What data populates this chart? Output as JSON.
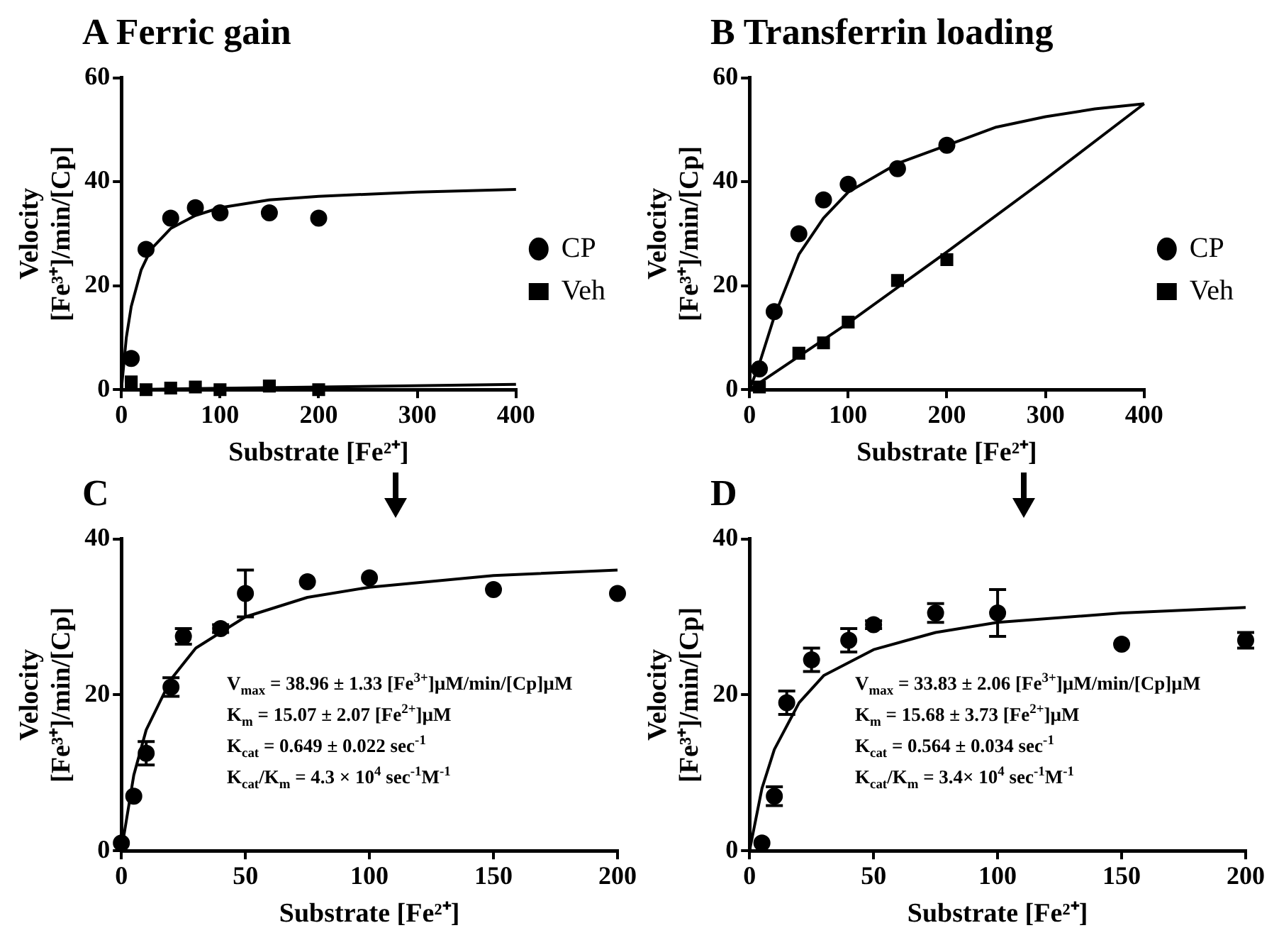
{
  "chart_data": [
    {
      "type": "scatter",
      "title": "A Ferric gain",
      "xlabel": "Substrate [Fe²⁺]",
      "ylabel": "Velocity\n[Fe³⁺]/min/[Cp]",
      "xlim": [
        0,
        400
      ],
      "xticks": [
        0,
        100,
        200,
        300,
        400
      ],
      "ylim": [
        0,
        60
      ],
      "yticks": [
        0,
        20,
        40,
        60
      ],
      "legend": "right",
      "series": [
        {
          "name": "CP",
          "type": "scatter",
          "marker": "circle",
          "color": "#000000",
          "x": [
            10,
            25,
            50,
            75,
            100,
            150,
            200
          ],
          "values": [
            6,
            27,
            33,
            35,
            34,
            34,
            33
          ]
        },
        {
          "name": "Veh",
          "type": "scatter",
          "marker": "square",
          "color": "#000000",
          "x": [
            10,
            25,
            50,
            75,
            100,
            150,
            200
          ],
          "values": [
            1.5,
            0,
            0.3,
            0.5,
            0,
            0.7,
            0
          ]
        },
        {
          "type": "line",
          "marker": "none",
          "color": "#000000",
          "x": [
            0,
            5,
            10,
            20,
            30,
            50,
            75,
            100,
            150,
            200,
            300,
            400
          ],
          "values": [
            0,
            10,
            16,
            23,
            27,
            31,
            33.5,
            35,
            36.5,
            37.2,
            38,
            38.5
          ]
        },
        {
          "type": "line",
          "marker": "none",
          "color": "#000000",
          "x": [
            0,
            400
          ],
          "values": [
            0,
            1
          ]
        }
      ]
    },
    {
      "type": "scatter",
      "title": "B Transferrin loading",
      "xlabel": "Substrate [Fe²⁺]",
      "ylabel": "Velocity\n[Fe³⁺]/min/[Cp]",
      "xlim": [
        0,
        400
      ],
      "xticks": [
        0,
        100,
        200,
        300,
        400
      ],
      "ylim": [
        0,
        60
      ],
      "yticks": [
        0,
        20,
        40,
        60
      ],
      "legend": "right",
      "series": [
        {
          "name": "CP",
          "type": "scatter",
          "marker": "circle",
          "color": "#000000",
          "x": [
            10,
            25,
            50,
            75,
            100,
            150,
            200
          ],
          "values": [
            4,
            15,
            30,
            36.5,
            39.5,
            42.5,
            47
          ]
        },
        {
          "name": "Veh",
          "type": "scatter",
          "marker": "square",
          "color": "#000000",
          "x": [
            10,
            50,
            75,
            100,
            150,
            200
          ],
          "values": [
            0.5,
            7,
            9,
            13,
            21,
            25
          ]
        },
        {
          "type": "line",
          "marker": "none",
          "color": "#000000",
          "x": [
            0,
            10,
            25,
            50,
            75,
            100,
            150,
            200,
            250,
            300,
            350,
            400
          ],
          "values": [
            0,
            5,
            14,
            26,
            33,
            38,
            43.5,
            47,
            50.5,
            52.5,
            54,
            55
          ]
        },
        {
          "type": "line",
          "marker": "none",
          "color": "#000000",
          "x": [
            0,
            100,
            200,
            300,
            400
          ],
          "values": [
            0,
            12.8,
            26.5,
            40.5,
            55
          ]
        }
      ]
    },
    {
      "type": "scatter",
      "title": "C",
      "xlabel": "Substrate [Fe²⁺]",
      "ylabel": "Velocity\n[Fe³⁺]/min/[Cp]",
      "xlim": [
        0,
        200
      ],
      "xticks": [
        0,
        50,
        100,
        150,
        200
      ],
      "ylim": [
        0,
        40
      ],
      "yticks": [
        0,
        20,
        40
      ],
      "annotations": [
        "V$_{max}$ = 38.96 ± 1.33 [Fe$^{3+}$]µM/min/[Cp]µM",
        "K$_{m}$ = 15.07 ± 2.07 [Fe$^{2+}$]µM",
        "K$_{cat}$ = 0.649 ± 0.022 sec$^{-1}$",
        "K$_{cat}$/K$_{m}$ = 4.3 × 10$^{4}$ sec$^{-1}$M$^{-1}$"
      ],
      "series": [
        {
          "type": "scatter",
          "marker": "circle",
          "color": "#000000",
          "x": [
            0,
            5,
            10,
            20,
            25,
            40,
            50,
            75,
            100,
            150,
            200
          ],
          "values": [
            1,
            7,
            12.5,
            21,
            27.5,
            28.5,
            33,
            34.5,
            35,
            33.5,
            33
          ],
          "errors": [
            null,
            null,
            1.5,
            1.2,
            1,
            0.5,
            3,
            null,
            null,
            null,
            null
          ]
        },
        {
          "type": "line",
          "marker": "none",
          "color": "#000000",
          "x": [
            0,
            5,
            10,
            20,
            30,
            50,
            75,
            100,
            150,
            200
          ],
          "values": [
            0,
            9.7,
            15.5,
            22,
            26,
            30,
            32.5,
            33.8,
            35.3,
            36
          ]
        }
      ]
    },
    {
      "type": "scatter",
      "title": "D",
      "xlabel": "Substrate [Fe²⁺]",
      "ylabel": "Velocity\n[Fe³⁺]/min/[Cp]",
      "xlim": [
        0,
        200
      ],
      "xticks": [
        0,
        50,
        100,
        150,
        200
      ],
      "ylim": [
        0,
        40
      ],
      "yticks": [
        0,
        20,
        40
      ],
      "annotations": [
        "V$_{max}$ = 33.83 ± 2.06 [Fe$^{3+}$]µM/min/[Cp]µM",
        "K$_{m}$ = 15.68 ± 3.73 [Fe$^{2+}$]µM",
        "K$_{cat}$ = 0.564 ± 0.034 sec$^{-1}$",
        "K$_{cat}$/K$_{m}$ = 3.4× 10$^{4}$ sec$^{-1}$M$^{-1}$"
      ],
      "series": [
        {
          "type": "scatter",
          "marker": "circle",
          "color": "#000000",
          "x": [
            5,
            10,
            15,
            25,
            40,
            50,
            75,
            100,
            150,
            200
          ],
          "values": [
            1,
            7,
            19,
            24.5,
            27,
            29,
            30.5,
            30.5,
            26.5,
            27
          ],
          "errors": [
            null,
            1.2,
            1.5,
            1.5,
            1.5,
            0.5,
            1.2,
            3,
            null,
            1
          ]
        },
        {
          "type": "line",
          "marker": "none",
          "color": "#000000",
          "x": [
            0,
            5,
            10,
            20,
            30,
            50,
            75,
            100,
            150,
            200
          ],
          "values": [
            0,
            8,
            13,
            19,
            22.5,
            25.8,
            28,
            29.3,
            30.5,
            31.2
          ]
        }
      ]
    }
  ]
}
